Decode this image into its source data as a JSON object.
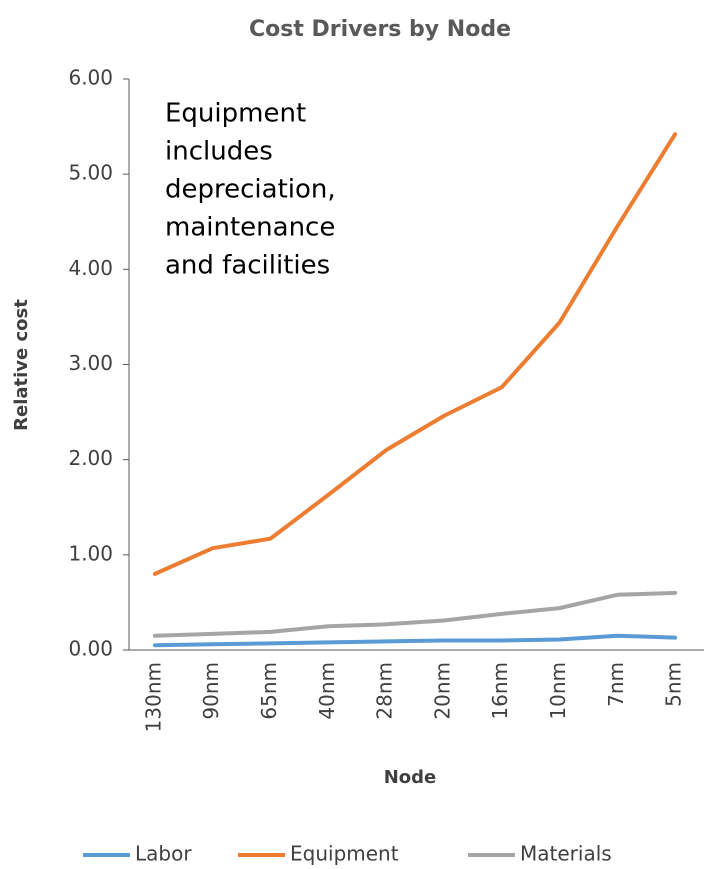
{
  "chart_data": {
    "type": "line",
    "title": "Cost Drivers by Node",
    "x_label": "Node",
    "y_label": "Relative cost",
    "annotation": [
      "Equipment",
      "includes",
      "depreciation,",
      "maintenance",
      "and facilities"
    ],
    "categories": [
      "130nm",
      "90nm",
      "65nm",
      "40nm",
      "28nm",
      "20nm",
      "16nm",
      "10nm",
      "7nm",
      "5nm"
    ],
    "series": [
      {
        "name": "Labor",
        "color": "#5b9bd5",
        "values": [
          0.05,
          0.06,
          0.07,
          0.08,
          0.09,
          0.1,
          0.1,
          0.11,
          0.15,
          0.13
        ]
      },
      {
        "name": "Equipment",
        "color": "#ed7d31",
        "values": [
          0.8,
          1.07,
          1.17,
          1.63,
          2.1,
          2.46,
          2.76,
          3.44,
          4.45,
          5.42
        ]
      },
      {
        "name": "Materials",
        "color": "#a5a5a5",
        "values": [
          0.15,
          0.17,
          0.19,
          0.25,
          0.27,
          0.31,
          0.38,
          0.44,
          0.58,
          0.6
        ]
      }
    ],
    "ylim": [
      0,
      6
    ],
    "yticks": [
      {
        "value": 0,
        "label": "0.00"
      },
      {
        "value": 1,
        "label": "1.00"
      },
      {
        "value": 2,
        "label": "2.00"
      },
      {
        "value": 3,
        "label": "3.00"
      },
      {
        "value": 4,
        "label": "4.00"
      },
      {
        "value": 5,
        "label": "5.00"
      },
      {
        "value": 6,
        "label": "6.00"
      }
    ],
    "grid": false,
    "legend": "bottom"
  }
}
